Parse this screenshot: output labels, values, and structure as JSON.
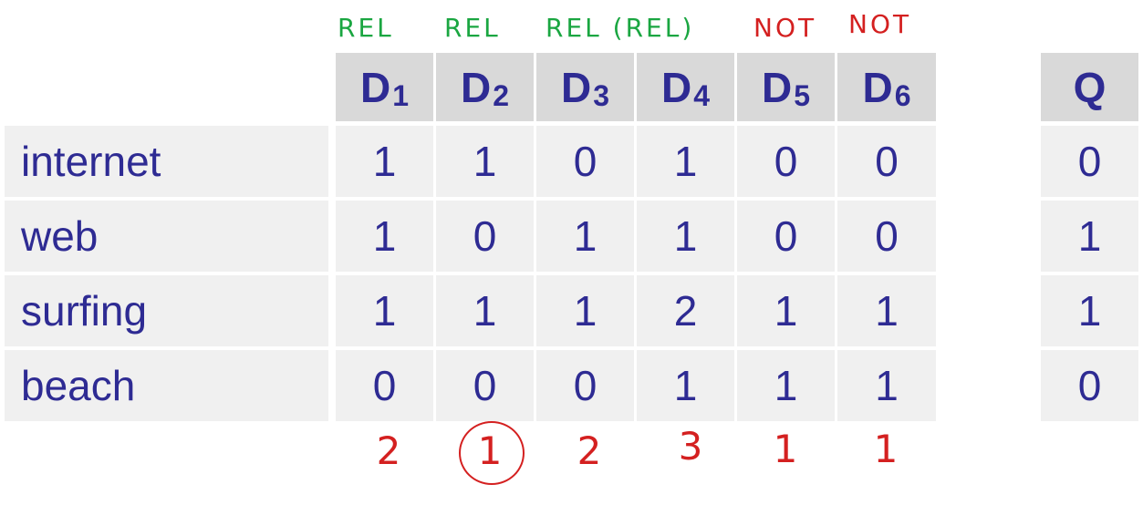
{
  "annotations": {
    "top_green": [
      "REL",
      "REL",
      "REL (REL)"
    ],
    "top_red": [
      "NOT",
      "NOT"
    ],
    "scores": [
      "2",
      "1",
      "2",
      "3",
      "1",
      "1"
    ]
  },
  "headers": [
    {
      "main": "D",
      "sub": "1"
    },
    {
      "main": "D",
      "sub": "2"
    },
    {
      "main": "D",
      "sub": "3"
    },
    {
      "main": "D",
      "sub": "4"
    },
    {
      "main": "D",
      "sub": "5"
    },
    {
      "main": "D",
      "sub": "6"
    }
  ],
  "query_header": "Q",
  "rows": [
    {
      "term": "internet",
      "values": [
        "1",
        "1",
        "0",
        "1",
        "0",
        "0"
      ],
      "q": "0"
    },
    {
      "term": "web",
      "values": [
        "1",
        "0",
        "1",
        "1",
        "0",
        "0"
      ],
      "q": "1"
    },
    {
      "term": "surfing",
      "values": [
        "1",
        "1",
        "1",
        "2",
        "1",
        "1"
      ],
      "q": "1"
    },
    {
      "term": "beach",
      "values": [
        "0",
        "0",
        "0",
        "1",
        "1",
        "1"
      ],
      "q": "0"
    }
  ],
  "colors": {
    "text": "#2e2b93",
    "header_bg": "#d9d9d9",
    "row_bg": "#f0f0f0",
    "green_ink": "#1aa641",
    "red_ink": "#d42020"
  }
}
